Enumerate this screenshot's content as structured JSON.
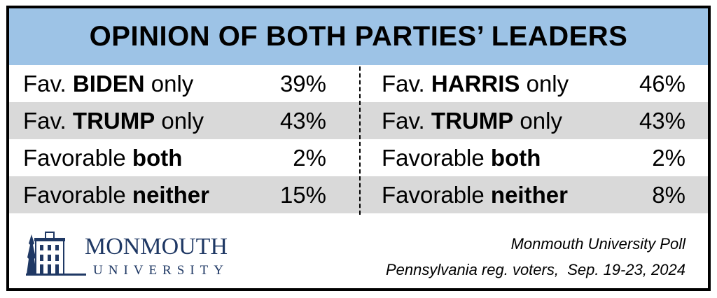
{
  "title": "OPINION OF BOTH PARTIES’ LEADERS",
  "colors": {
    "header": "#9dc3e6",
    "stripe": "#d9d9d9",
    "logo": "#1f3864"
  },
  "chart_data": {
    "type": "table",
    "title": "OPINION OF BOTH PARTIES’ LEADERS",
    "tables": [
      {
        "rows": [
          {
            "prefix": "Fav. ",
            "bold": "BIDEN",
            "suffix": " only",
            "value": "39%"
          },
          {
            "prefix": "Fav. ",
            "bold": "TRUMP",
            "suffix": " only",
            "value": "43%"
          },
          {
            "prefix": "Favorable ",
            "bold": "both",
            "suffix": "",
            "value": "2%"
          },
          {
            "prefix": "Favorable ",
            "bold": "neither",
            "suffix": "",
            "value": "15%"
          }
        ]
      },
      {
        "rows": [
          {
            "prefix": "Fav. ",
            "bold": "HARRIS",
            "suffix": " only",
            "value": "46%"
          },
          {
            "prefix": "Fav. ",
            "bold": "TRUMP",
            "suffix": " only",
            "value": "43%"
          },
          {
            "prefix": "Favorable ",
            "bold": "both",
            "suffix": "",
            "value": "2%"
          },
          {
            "prefix": "Favorable ",
            "bold": "neither",
            "suffix": "",
            "value": "8%"
          }
        ]
      }
    ]
  },
  "logo": {
    "line1": "MONMOUTH",
    "line2": "UNIVERSITY"
  },
  "credit": {
    "line1": "Monmouth University Poll",
    "line2": "Pennsylvania reg. voters,  Sep. 19-23, 2024"
  }
}
